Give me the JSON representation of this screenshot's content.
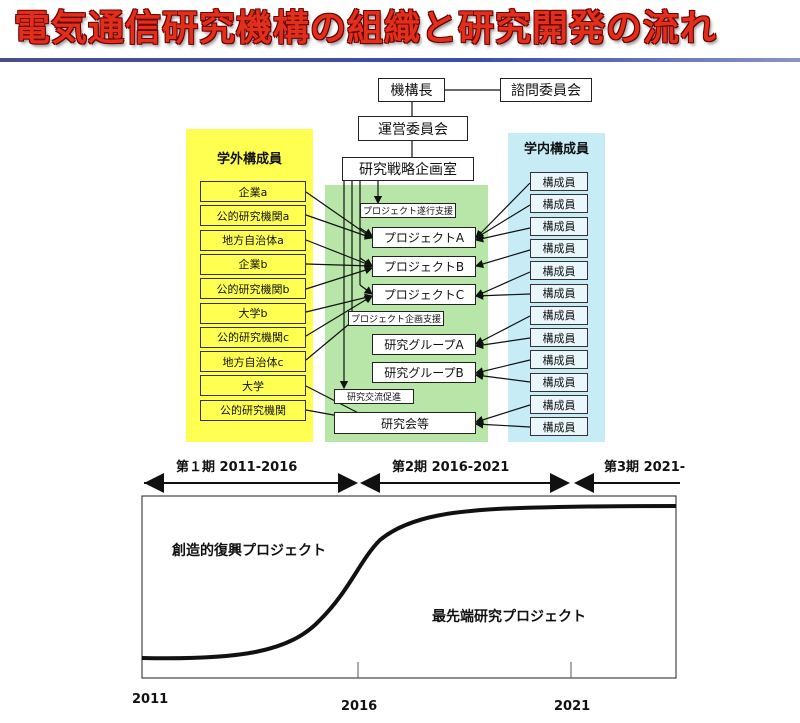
{
  "title": "電気通信研究機構の組織と研究開発の流れ",
  "org": {
    "director": "機構長",
    "advisory": "諮問委員会",
    "steering": "運営委員会",
    "planning": "研究戦略企画室",
    "external_header": "学外構成員",
    "internal_header": "学内構成員",
    "external_members": [
      "企業a",
      "公的研究機関a",
      "地方自治体a",
      "企業b",
      "公的研究機関b",
      "大学b",
      "公的研究機関c",
      "地方自治体c",
      "大学",
      "公的研究機関"
    ],
    "internal_members": [
      "構成員",
      "構成員",
      "構成員",
      "構成員",
      "構成員",
      "構成員",
      "構成員",
      "構成員",
      "構成員",
      "構成員",
      "構成員",
      "構成員"
    ],
    "support_progress": "プロジェクト遂行支援",
    "project_a": "プロジェクトA",
    "project_b": "プロジェクトB",
    "project_c": "プロジェクトC",
    "support_planning": "プロジェクト企画支援",
    "group_a": "研究グループA",
    "group_b": "研究グループB",
    "exchange": "研究交流促進",
    "study": "研究会等"
  },
  "timeline": {
    "period1": "第１期 2011-2016",
    "period2": "第2期 2016-2021",
    "period3": "第3期 2021-",
    "year_labels": [
      "2011",
      "2016",
      "2021"
    ],
    "label_revival": "創造的復興プロジェクト",
    "label_advanced": "最先端研究プロジェクト"
  },
  "colors": {
    "title_red": "#e0301c",
    "external_yellow": "#ffff52",
    "center_green": "#b8e6a8",
    "internal_blue": "#c8ecf6"
  }
}
